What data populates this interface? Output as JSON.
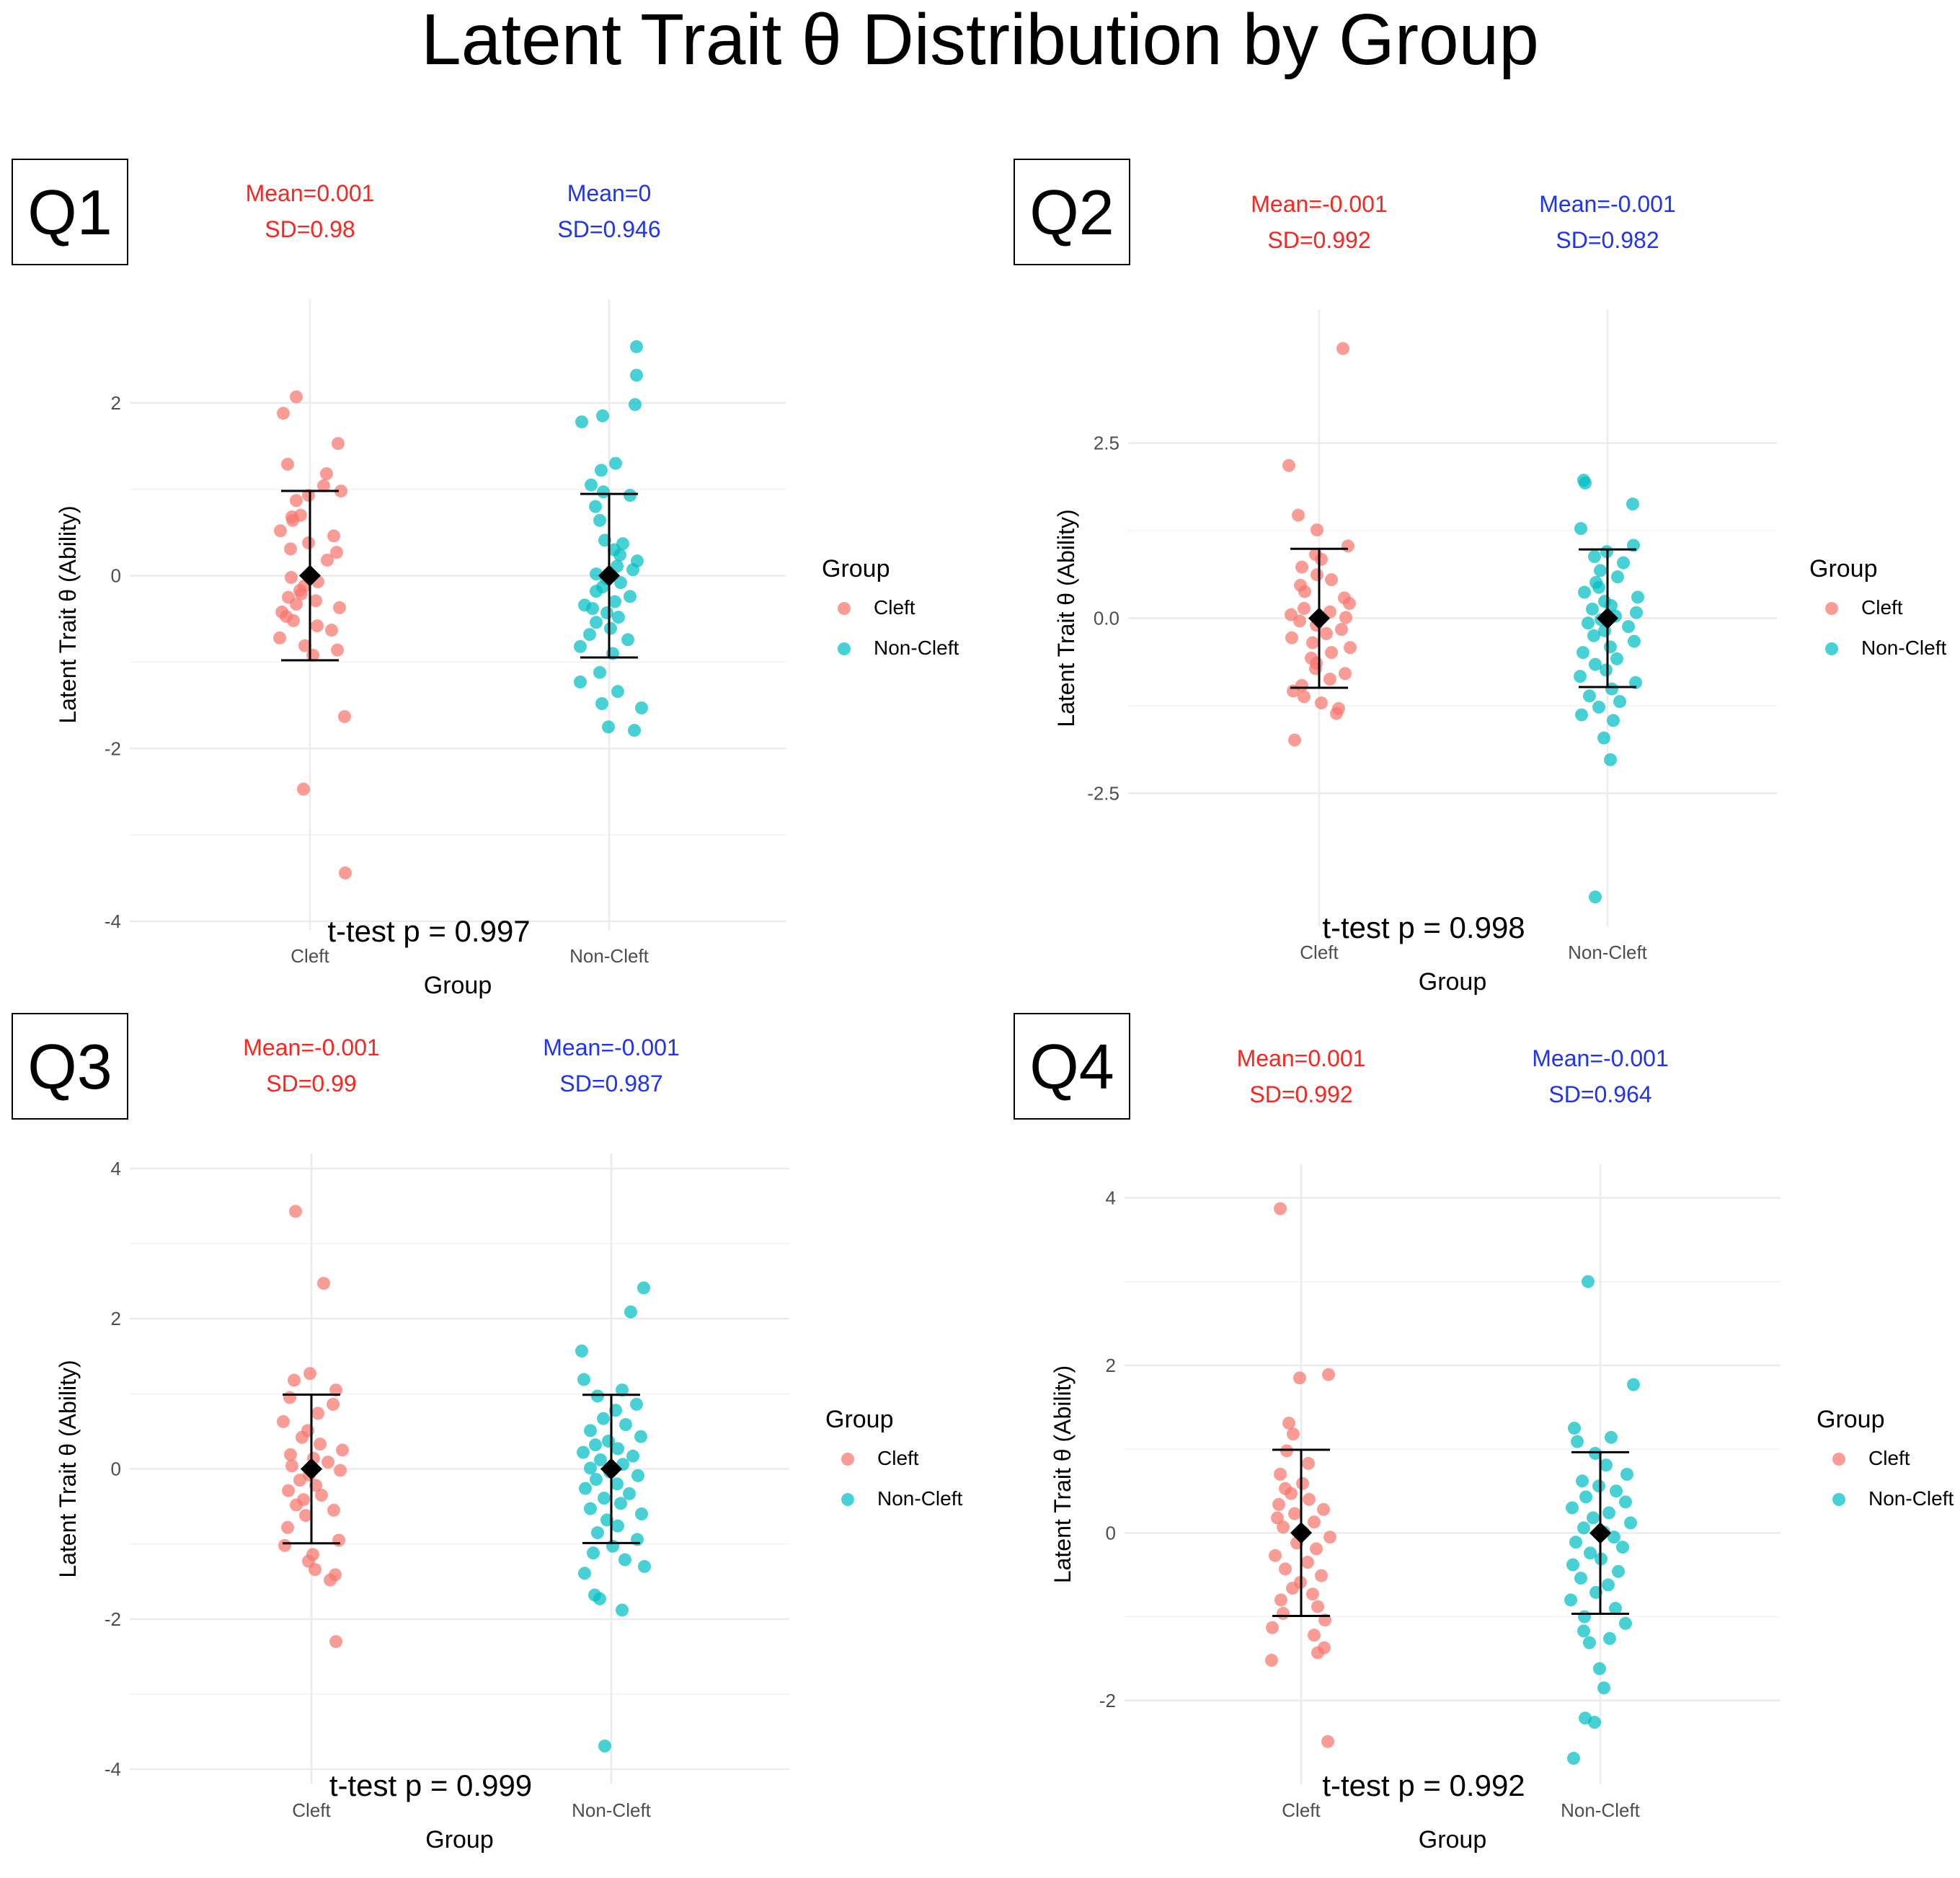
{
  "title": "Latent Trait θ Distribution by Group",
  "colors": {
    "cleft": "#F8766D",
    "noncleft": "#00BFC4",
    "cleft_text": "#F8261E",
    "noncleft_text": "#1F33F2",
    "grid": "#EBEBEB"
  },
  "legend": {
    "title": "Group",
    "items": [
      "Cleft",
      "Non-Cleft"
    ]
  },
  "chart_data": [
    {
      "type": "scatter",
      "panel_label": "Q1",
      "xlabel": "Group",
      "ylabel": "Latent Trait θ (Ability)",
      "categories": [
        "Cleft",
        "Non-Cleft"
      ],
      "ylim": [
        -4.1,
        3.2
      ],
      "yticks": [
        -4,
        -2,
        0,
        2
      ],
      "ytick_labels": [
        "-4",
        "-2",
        "0",
        "2"
      ],
      "ttest_label": "t-test p = 0.997",
      "annotations": [
        {
          "mean_label": "Mean=0.001",
          "sd_label": "SD=0.98"
        },
        {
          "mean_label": "Mean=0",
          "sd_label": "SD=0.946"
        }
      ],
      "series": [
        {
          "name": "Cleft",
          "mean": 0.001,
          "sd": 0.98,
          "values": [
            2.07,
            1.88,
            1.53,
            1.29,
            1.18,
            1.04,
            0.98,
            0.93,
            0.87,
            0.7,
            0.68,
            0.64,
            0.52,
            0.46,
            0.38,
            0.31,
            0.27,
            0.18,
            -0.02,
            -0.07,
            -0.12,
            -0.17,
            -0.21,
            -0.25,
            -0.29,
            -0.33,
            -0.37,
            -0.42,
            -0.47,
            -0.52,
            -0.58,
            -0.63,
            -0.72,
            -0.81,
            -0.86,
            -0.92,
            -1.63,
            -2.47,
            -3.44
          ],
          "jitter": [
            0.31,
            0.13,
            0.89,
            0.19,
            0.73,
            0.69,
            0.93,
            0.48,
            0.31,
            0.37,
            0.25,
            0.26,
            0.09,
            0.83,
            0.48,
            0.23,
            0.87,
            0.74,
            0.24,
            0.61,
            0.42,
            0.36,
            0.38,
            0.2,
            0.58,
            0.31,
            0.91,
            0.11,
            0.17,
            0.27,
            0.6,
            0.8,
            0.08,
            0.43,
            0.88,
            0.54,
            0.98,
            0.41,
            0.99
          ]
        },
        {
          "name": "Non-Cleft",
          "mean": 0.0,
          "sd": 0.946,
          "values": [
            2.65,
            2.32,
            1.98,
            1.85,
            1.78,
            1.3,
            1.22,
            1.05,
            0.97,
            0.93,
            0.8,
            0.64,
            0.41,
            0.37,
            0.3,
            0.24,
            0.17,
            0.11,
            0.07,
            0.02,
            -0.03,
            -0.08,
            -0.13,
            -0.18,
            -0.24,
            -0.3,
            -0.34,
            -0.38,
            -0.43,
            -0.48,
            -0.54,
            -0.61,
            -0.68,
            -0.74,
            -0.82,
            -0.9,
            -1.12,
            -1.23,
            -1.34,
            -1.48,
            -1.53,
            -1.75,
            -1.79
          ],
          "jitter": [
            0.88,
            0.88,
            0.86,
            0.41,
            0.12,
            0.59,
            0.39,
            0.25,
            0.42,
            0.79,
            0.31,
            0.37,
            0.44,
            0.69,
            0.57,
            0.65,
            0.89,
            0.61,
            0.83,
            0.32,
            0.46,
            0.66,
            0.41,
            0.32,
            0.79,
            0.58,
            0.16,
            0.27,
            0.47,
            0.63,
            0.32,
            0.52,
            0.23,
            0.76,
            0.1,
            0.55,
            0.37,
            0.1,
            0.62,
            0.4,
            0.95,
            0.49,
            0.85
          ]
        }
      ]
    },
    {
      "type": "scatter",
      "panel_label": "Q2",
      "xlabel": "Group",
      "ylabel": "Latent Trait θ (Ability)",
      "categories": [
        "Cleft",
        "Non-Cleft"
      ],
      "ylim": [
        -4.4,
        4.4
      ],
      "yticks": [
        -2.5,
        0,
        2.5
      ],
      "ytick_labels": [
        "-2.5",
        "0.0",
        "2.5"
      ],
      "ttest_label": "t-test p = 0.998",
      "annotations": [
        {
          "mean_label": "Mean=-0.001",
          "sd_label": "SD=0.992"
        },
        {
          "mean_label": "Mean=-0.001",
          "sd_label": "SD=0.982"
        }
      ],
      "series": [
        {
          "name": "Cleft",
          "mean": -0.001,
          "sd": 0.992,
          "values": [
            3.85,
            2.18,
            1.47,
            1.26,
            1.03,
            0.91,
            0.84,
            0.73,
            0.62,
            0.55,
            0.47,
            0.38,
            0.29,
            0.21,
            0.14,
            0.09,
            0.05,
            0.01,
            -0.04,
            -0.1,
            -0.16,
            -0.22,
            -0.28,
            -0.35,
            -0.42,
            -0.49,
            -0.57,
            -0.64,
            -0.72,
            -0.79,
            -0.87,
            -0.96,
            -1.04,
            -1.12,
            -1.21,
            -1.29,
            -1.36,
            -1.74
          ],
          "jitter": [
            0.83,
            0.08,
            0.21,
            0.47,
            0.9,
            0.45,
            0.53,
            0.26,
            0.47,
            0.67,
            0.24,
            0.3,
            0.85,
            0.92,
            0.29,
            0.65,
            0.11,
            0.87,
            0.23,
            0.46,
            0.81,
            0.6,
            0.12,
            0.41,
            0.93,
            0.67,
            0.39,
            0.46,
            0.45,
            0.86,
            0.65,
            0.26,
            0.14,
            0.29,
            0.53,
            0.77,
            0.74,
            0.16
          ]
        },
        {
          "name": "Non-Cleft",
          "mean": -0.001,
          "sd": 0.982,
          "values": [
            1.97,
            1.93,
            1.63,
            1.28,
            1.04,
            0.95,
            0.88,
            0.79,
            0.68,
            0.59,
            0.51,
            0.44,
            0.37,
            0.3,
            0.24,
            0.18,
            0.13,
            0.08,
            0.03,
            -0.02,
            -0.07,
            -0.12,
            -0.18,
            -0.25,
            -0.33,
            -0.41,
            -0.49,
            -0.58,
            -0.66,
            -0.74,
            -0.83,
            -0.92,
            -1.01,
            -1.11,
            -1.19,
            -1.27,
            -1.38,
            -1.46,
            -1.71,
            -2.02,
            -3.98
          ],
          "jitter": [
            0.17,
            0.19,
            0.85,
            0.13,
            0.86,
            0.49,
            0.32,
            0.72,
            0.4,
            0.64,
            0.34,
            0.38,
            0.18,
            0.92,
            0.46,
            0.55,
            0.29,
            0.9,
            0.61,
            0.41,
            0.23,
            0.79,
            0.46,
            0.31,
            0.87,
            0.54,
            0.16,
            0.63,
            0.33,
            0.48,
            0.12,
            0.89,
            0.56,
            0.25,
            0.67,
            0.38,
            0.14,
            0.58,
            0.45,
            0.54,
            0.33
          ]
        }
      ]
    },
    {
      "type": "scatter",
      "panel_label": "Q3",
      "xlabel": "Group",
      "ylabel": "Latent Trait θ (Ability)",
      "categories": [
        "Cleft",
        "Non-Cleft"
      ],
      "ylim": [
        -4.2,
        4.2
      ],
      "yticks": [
        -4,
        -2,
        0,
        2,
        4
      ],
      "ytick_labels": [
        "-4",
        "-2",
        "0",
        "2",
        "4"
      ],
      "ttest_label": "t-test p = 0.999",
      "annotations": [
        {
          "mean_label": "Mean=-0.001",
          "sd_label": "SD=0.99"
        },
        {
          "mean_label": "Mean=-0.001",
          "sd_label": "SD=0.987"
        }
      ],
      "series": [
        {
          "name": "Cleft",
          "mean": -0.001,
          "sd": 0.99,
          "values": [
            3.43,
            2.47,
            1.27,
            1.18,
            1.05,
            0.95,
            0.86,
            0.74,
            0.63,
            0.51,
            0.42,
            0.33,
            0.25,
            0.19,
            0.14,
            0.09,
            0.04,
            -0.02,
            -0.08,
            -0.15,
            -0.22,
            -0.29,
            -0.35,
            -0.41,
            -0.48,
            -0.55,
            -0.62,
            -0.78,
            -0.95,
            -1.02,
            -1.14,
            -1.23,
            -1.34,
            -1.41,
            -1.48,
            -2.3
          ],
          "jitter": [
            0.28,
            0.67,
            0.48,
            0.26,
            0.84,
            0.2,
            0.8,
            0.59,
            0.11,
            0.45,
            0.37,
            0.62,
            0.93,
            0.21,
            0.53,
            0.73,
            0.23,
            0.9,
            0.47,
            0.34,
            0.56,
            0.18,
            0.64,
            0.39,
            0.29,
            0.81,
            0.42,
            0.17,
            0.88,
            0.13,
            0.52,
            0.46,
            0.55,
            0.83,
            0.76,
            0.84
          ]
        },
        {
          "name": "Non-Cleft",
          "mean": -0.001,
          "sd": 0.987,
          "values": [
            2.41,
            2.09,
            1.57,
            1.19,
            1.05,
            0.97,
            0.86,
            0.78,
            0.67,
            0.59,
            0.51,
            0.43,
            0.37,
            0.32,
            0.27,
            0.22,
            0.17,
            0.12,
            0.06,
            0.01,
            -0.04,
            -0.09,
            -0.14,
            -0.2,
            -0.26,
            -0.33,
            -0.39,
            -0.46,
            -0.53,
            -0.6,
            -0.68,
            -0.76,
            -0.85,
            -0.94,
            -1.03,
            -1.12,
            -1.21,
            -1.3,
            -1.39,
            -1.68,
            -1.73,
            -1.88,
            -3.69
          ],
          "jitter": [
            0.95,
            0.77,
            0.09,
            0.12,
            0.65,
            0.31,
            0.85,
            0.56,
            0.39,
            0.7,
            0.21,
            0.91,
            0.46,
            0.28,
            0.59,
            0.11,
            0.8,
            0.35,
            0.66,
            0.21,
            0.48,
            0.87,
            0.29,
            0.58,
            0.14,
            0.75,
            0.4,
            0.63,
            0.21,
            0.92,
            0.44,
            0.59,
            0.31,
            0.86,
            0.52,
            0.25,
            0.69,
            0.96,
            0.13,
            0.27,
            0.34,
            0.65,
            0.41
          ]
        }
      ]
    },
    {
      "type": "scatter",
      "panel_label": "Q4",
      "xlabel": "Group",
      "ylabel": "Latent Trait θ (Ability)",
      "categories": [
        "Cleft",
        "Non-Cleft"
      ],
      "ylim": [
        -3.0,
        4.4
      ],
      "yticks": [
        -2,
        0,
        2,
        4
      ],
      "ytick_labels": [
        "-2",
        "0",
        "2",
        "4"
      ],
      "ttest_label": "t-test p = 0.992",
      "annotations": [
        {
          "mean_label": "Mean=0.001",
          "sd_label": "SD=0.992"
        },
        {
          "mean_label": "Mean=-0.001",
          "sd_label": "SD=0.964"
        }
      ],
      "series": [
        {
          "name": "Cleft",
          "mean": 0.001,
          "sd": 0.992,
          "values": [
            3.87,
            1.89,
            1.85,
            1.31,
            1.18,
            0.98,
            0.83,
            0.7,
            0.59,
            0.53,
            0.47,
            0.4,
            0.34,
            0.28,
            0.23,
            0.18,
            0.13,
            0.07,
            0.01,
            -0.05,
            -0.12,
            -0.19,
            -0.27,
            -0.35,
            -0.43,
            -0.51,
            -0.59,
            -0.66,
            -0.73,
            -0.8,
            -0.88,
            -0.96,
            -1.04,
            -1.13,
            -1.22,
            -1.37,
            -1.43,
            -1.52,
            -2.49
          ],
          "jitter": [
            0.21,
            0.88,
            0.48,
            0.33,
            0.39,
            0.3,
            0.6,
            0.21,
            0.52,
            0.28,
            0.36,
            0.61,
            0.19,
            0.81,
            0.41,
            0.17,
            0.68,
            0.25,
            0.53,
            0.9,
            0.44,
            0.71,
            0.14,
            0.59,
            0.28,
            0.78,
            0.49,
            0.38,
            0.66,
            0.22,
            0.73,
            0.25,
            0.83,
            0.1,
            0.68,
            0.82,
            0.73,
            0.09,
            0.87
          ]
        },
        {
          "name": "Non-Cleft",
          "mean": -0.001,
          "sd": 0.964,
          "values": [
            3.0,
            1.77,
            1.25,
            1.14,
            1.09,
            0.95,
            0.81,
            0.7,
            0.62,
            0.56,
            0.5,
            0.43,
            0.37,
            0.3,
            0.24,
            0.18,
            0.12,
            0.06,
            0.01,
            -0.05,
            -0.11,
            -0.17,
            -0.24,
            -0.31,
            -0.38,
            -0.46,
            -0.54,
            -0.62,
            -0.71,
            -0.8,
            -0.9,
            -1.0,
            -1.08,
            -1.17,
            -1.26,
            -1.31,
            -1.62,
            -1.85,
            -2.21,
            -2.26,
            -2.69
          ],
          "jitter": [
            0.33,
            0.96,
            0.14,
            0.65,
            0.18,
            0.43,
            0.58,
            0.87,
            0.25,
            0.48,
            0.72,
            0.3,
            0.85,
            0.11,
            0.62,
            0.4,
            0.92,
            0.27,
            0.55,
            0.69,
            0.16,
            0.81,
            0.36,
            0.51,
            0.12,
            0.75,
            0.23,
            0.61,
            0.44,
            0.09,
            0.71,
            0.28,
            0.85,
            0.27,
            0.63,
            0.35,
            0.49,
            0.55,
            0.29,
            0.42,
            0.13
          ]
        }
      ]
    }
  ]
}
